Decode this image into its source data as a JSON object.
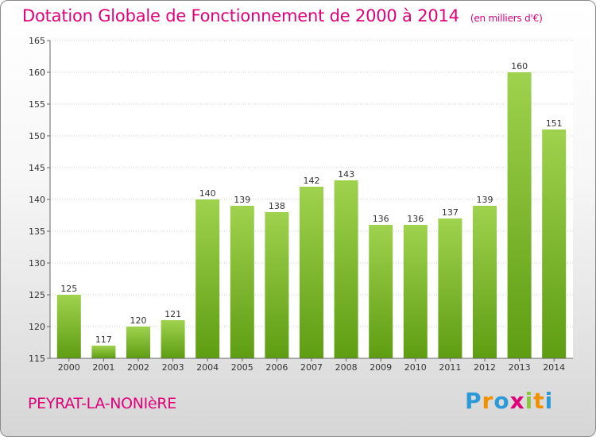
{
  "title": "Dotation Globale de Fonctionnement de 2000 à 2014",
  "subtitle": "(en milliers d'€)",
  "commune": "PEYRAT-LA-NONIèRE",
  "logo": {
    "p": "P",
    "r": "r",
    "o": "o",
    "x": "x",
    "i1": "i",
    "t": "t",
    "i2": "i"
  },
  "colors": {
    "title": "#e0007a",
    "bar_top": "#9fd24e",
    "bar_bottom": "#5e9d12"
  },
  "chart_data": {
    "type": "bar",
    "title": "Dotation Globale de Fonctionnement de 2000 à 2014",
    "subtitle": "(en milliers d'€)",
    "categories": [
      "2000",
      "2001",
      "2002",
      "2003",
      "2004",
      "2005",
      "2006",
      "2007",
      "2008",
      "2009",
      "2010",
      "2011",
      "2012",
      "2013",
      "2014"
    ],
    "values": [
      125,
      117,
      120,
      121,
      140,
      139,
      138,
      142,
      143,
      136,
      136,
      137,
      139,
      160,
      151
    ],
    "ylim": [
      115,
      165
    ],
    "yticks": [
      115,
      120,
      125,
      130,
      135,
      140,
      145,
      150,
      155,
      160,
      165
    ],
    "grid": true,
    "xlabel": "",
    "ylabel": ""
  }
}
